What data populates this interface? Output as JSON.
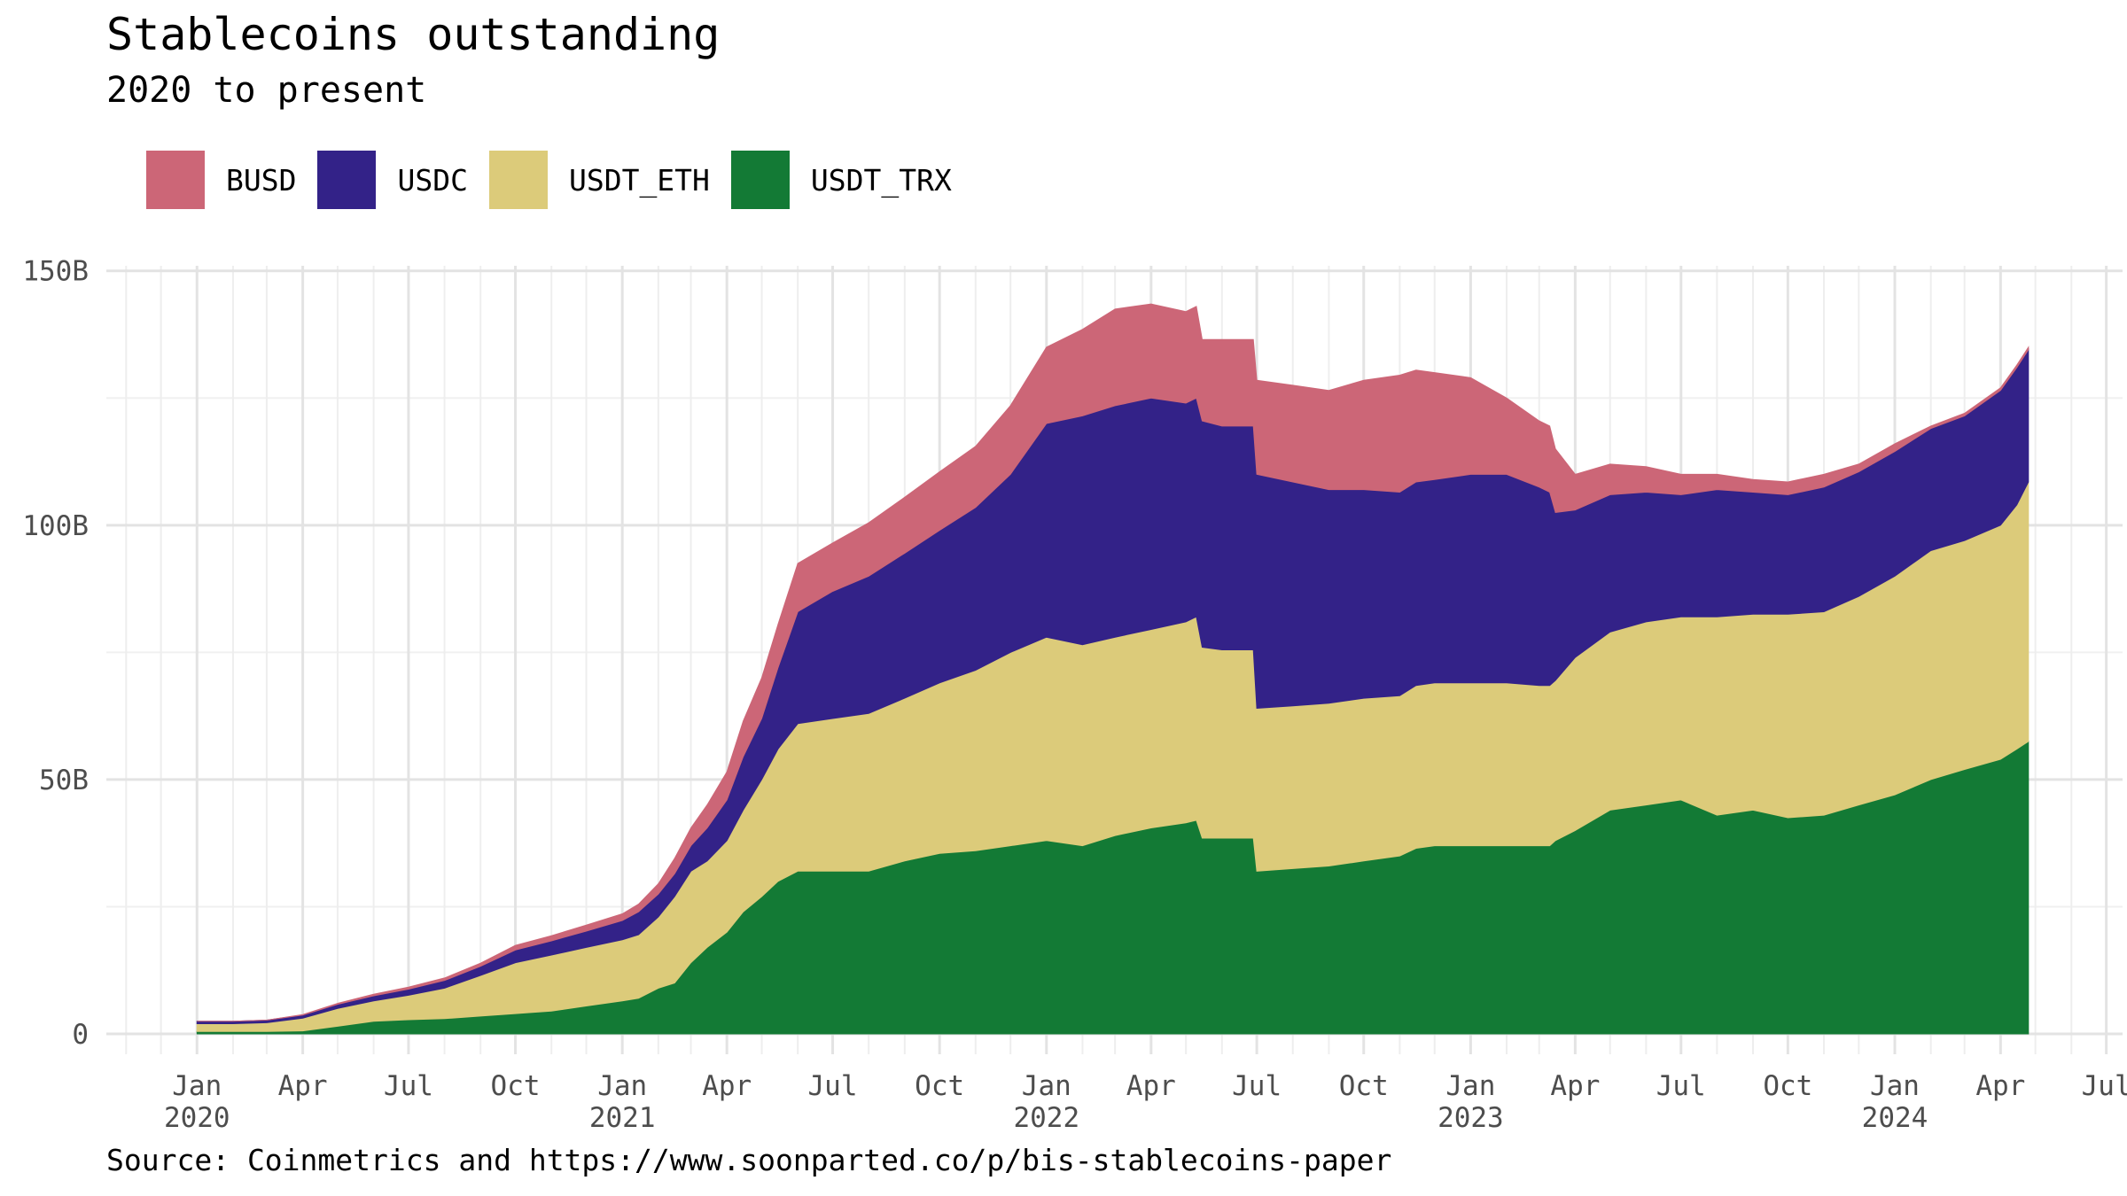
{
  "chart_data": {
    "type": "area",
    "stacked": true,
    "title": "Stablecoins outstanding",
    "subtitle": "2020 to present",
    "caption": "Source: Coinmetrics and https://www.soonparted.co/p/bis-stablecoins-paper",
    "xlabel": "",
    "ylabel": "",
    "x_range": [
      "2019-10-15",
      "2024-07-15"
    ],
    "ylim": [
      -4,
      151
    ],
    "y_unit": "billions USD",
    "grid": true,
    "legend_position": "top-left",
    "y_ticks": [
      {
        "value": 0,
        "label": "0"
      },
      {
        "value": 50,
        "label": "50B"
      },
      {
        "value": 100,
        "label": "100B"
      },
      {
        "value": 150,
        "label": "150B"
      }
    ],
    "x_ticks": [
      {
        "date": "2020-01-01",
        "label": "Jan",
        "year": "2020"
      },
      {
        "date": "2020-04-01",
        "label": "Apr",
        "year": ""
      },
      {
        "date": "2020-07-01",
        "label": "Jul",
        "year": ""
      },
      {
        "date": "2020-10-01",
        "label": "Oct",
        "year": ""
      },
      {
        "date": "2021-01-01",
        "label": "Jan",
        "year": "2021"
      },
      {
        "date": "2021-04-01",
        "label": "Apr",
        "year": ""
      },
      {
        "date": "2021-07-01",
        "label": "Jul",
        "year": ""
      },
      {
        "date": "2021-10-01",
        "label": "Oct",
        "year": ""
      },
      {
        "date": "2022-01-01",
        "label": "Jan",
        "year": "2022"
      },
      {
        "date": "2022-04-01",
        "label": "Apr",
        "year": ""
      },
      {
        "date": "2022-07-01",
        "label": "Jul",
        "year": ""
      },
      {
        "date": "2022-10-01",
        "label": "Oct",
        "year": ""
      },
      {
        "date": "2023-01-01",
        "label": "Jan",
        "year": "2023"
      },
      {
        "date": "2023-04-01",
        "label": "Apr",
        "year": ""
      },
      {
        "date": "2023-07-01",
        "label": "Jul",
        "year": ""
      },
      {
        "date": "2023-10-01",
        "label": "Oct",
        "year": ""
      },
      {
        "date": "2024-01-01",
        "label": "Jan",
        "year": "2024"
      },
      {
        "date": "2024-04-01",
        "label": "Apr",
        "year": ""
      },
      {
        "date": "2024-07-01",
        "label": "Jul",
        "year": ""
      }
    ],
    "x": [
      "2020-01-01",
      "2020-02-01",
      "2020-03-01",
      "2020-04-01",
      "2020-05-01",
      "2020-06-01",
      "2020-07-01",
      "2020-08-01",
      "2020-09-01",
      "2020-10-01",
      "2020-11-01",
      "2020-12-01",
      "2021-01-01",
      "2021-01-15",
      "2021-02-01",
      "2021-02-15",
      "2021-03-01",
      "2021-03-15",
      "2021-04-01",
      "2021-04-15",
      "2021-05-01",
      "2021-05-15",
      "2021-06-01",
      "2021-07-01",
      "2021-08-01",
      "2021-09-01",
      "2021-10-01",
      "2021-11-01",
      "2021-12-01",
      "2022-01-01",
      "2022-02-01",
      "2022-03-01",
      "2022-04-01",
      "2022-05-01",
      "2022-05-10",
      "2022-05-15",
      "2022-06-01",
      "2022-06-28",
      "2022-07-01",
      "2022-08-01",
      "2022-09-01",
      "2022-10-01",
      "2022-11-01",
      "2022-11-15",
      "2022-12-01",
      "2023-01-01",
      "2023-02-01",
      "2023-03-01",
      "2023-03-10",
      "2023-03-15",
      "2023-04-01",
      "2023-05-01",
      "2023-06-01",
      "2023-07-01",
      "2023-08-01",
      "2023-09-01",
      "2023-10-01",
      "2023-11-01",
      "2023-12-01",
      "2024-01-01",
      "2024-02-01",
      "2024-03-01",
      "2024-04-01",
      "2024-04-15",
      "2024-04-25"
    ],
    "series": [
      {
        "name": "USDT_TRX",
        "color": "#137a35",
        "values": [
          0.5,
          0.5,
          0.5,
          0.6,
          1.5,
          2.5,
          2.8,
          3.0,
          3.5,
          4.0,
          4.5,
          5.5,
          6.5,
          7.0,
          9.0,
          10.0,
          14.0,
          17.0,
          20.0,
          24.0,
          27.0,
          30.0,
          32.0,
          32.0,
          32.0,
          34.0,
          35.5,
          36.0,
          37.0,
          38.0,
          37.0,
          39.0,
          40.5,
          41.5,
          42.0,
          38.5,
          38.5,
          38.5,
          32.0,
          32.5,
          33.0,
          34.0,
          35.0,
          36.5,
          37.0,
          37.0,
          37.0,
          37.0,
          37.0,
          38.0,
          40.0,
          44.0,
          45.0,
          46.0,
          43.0,
          44.0,
          42.5,
          43.0,
          45.0,
          47.0,
          50.0,
          52.0,
          54.0,
          56.0,
          57.5
        ]
      },
      {
        "name": "USDT_ETH",
        "color": "#dccb7a",
        "values": [
          1.5,
          1.5,
          1.7,
          2.5,
          3.5,
          4.0,
          4.8,
          6.0,
          8.0,
          10.0,
          11.0,
          11.5,
          12.0,
          12.5,
          14.0,
          17.0,
          18.0,
          17.0,
          18.0,
          20.0,
          23.0,
          26.0,
          29.0,
          30.0,
          31.0,
          32.0,
          33.5,
          35.5,
          38.0,
          40.0,
          39.5,
          39.0,
          39.0,
          39.5,
          40.0,
          37.5,
          37.0,
          37.0,
          32.0,
          32.0,
          32.0,
          32.0,
          31.5,
          32.0,
          32.0,
          32.0,
          32.0,
          31.5,
          31.5,
          31.5,
          34.0,
          35.0,
          36.0,
          36.0,
          39.0,
          38.5,
          40.0,
          40.0,
          41.0,
          43.0,
          45.0,
          45.0,
          46.0,
          48.0,
          51.0
        ]
      },
      {
        "name": "USDC",
        "color": "#332288",
        "values": [
          0.5,
          0.5,
          0.5,
          0.6,
          0.8,
          1.0,
          1.2,
          1.5,
          1.8,
          2.5,
          2.8,
          3.2,
          3.8,
          4.5,
          4.5,
          4.5,
          5.0,
          6.5,
          8.0,
          10.5,
          12.0,
          16.0,
          22.0,
          25.0,
          27.0,
          28.5,
          30.0,
          32.0,
          35.0,
          42.0,
          45.0,
          45.5,
          45.5,
          43.0,
          43.0,
          44.5,
          44.0,
          44.0,
          46.0,
          44.0,
          42.0,
          41.0,
          40.0,
          40.0,
          40.0,
          41.0,
          41.0,
          39.0,
          38.0,
          33.0,
          29.0,
          27.0,
          25.5,
          24.0,
          25.0,
          24.0,
          23.5,
          24.5,
          24.5,
          24.5,
          24.0,
          24.5,
          26.5,
          27.0,
          26.0
        ]
      },
      {
        "name": "BUSD",
        "color": "#cc6677",
        "values": [
          0.0,
          0.0,
          0.0,
          0.1,
          0.2,
          0.3,
          0.4,
          0.5,
          0.6,
          0.9,
          1.0,
          1.2,
          1.3,
          1.5,
          2.0,
          3.0,
          3.5,
          4.5,
          5.5,
          7.0,
          8.0,
          8.5,
          9.5,
          9.5,
          10.5,
          11.0,
          11.5,
          12.0,
          13.5,
          15.0,
          17.0,
          19.0,
          18.5,
          18.0,
          18.0,
          16.0,
          17.0,
          17.0,
          18.5,
          19.0,
          19.5,
          21.5,
          23.0,
          22.0,
          21.0,
          19.0,
          15.0,
          13.0,
          13.0,
          12.5,
          7.0,
          6.0,
          5.0,
          4.0,
          3.0,
          2.5,
          2.5,
          2.5,
          1.5,
          1.5,
          0.5,
          0.5,
          0.5,
          0.5,
          0.5
        ]
      }
    ]
  }
}
